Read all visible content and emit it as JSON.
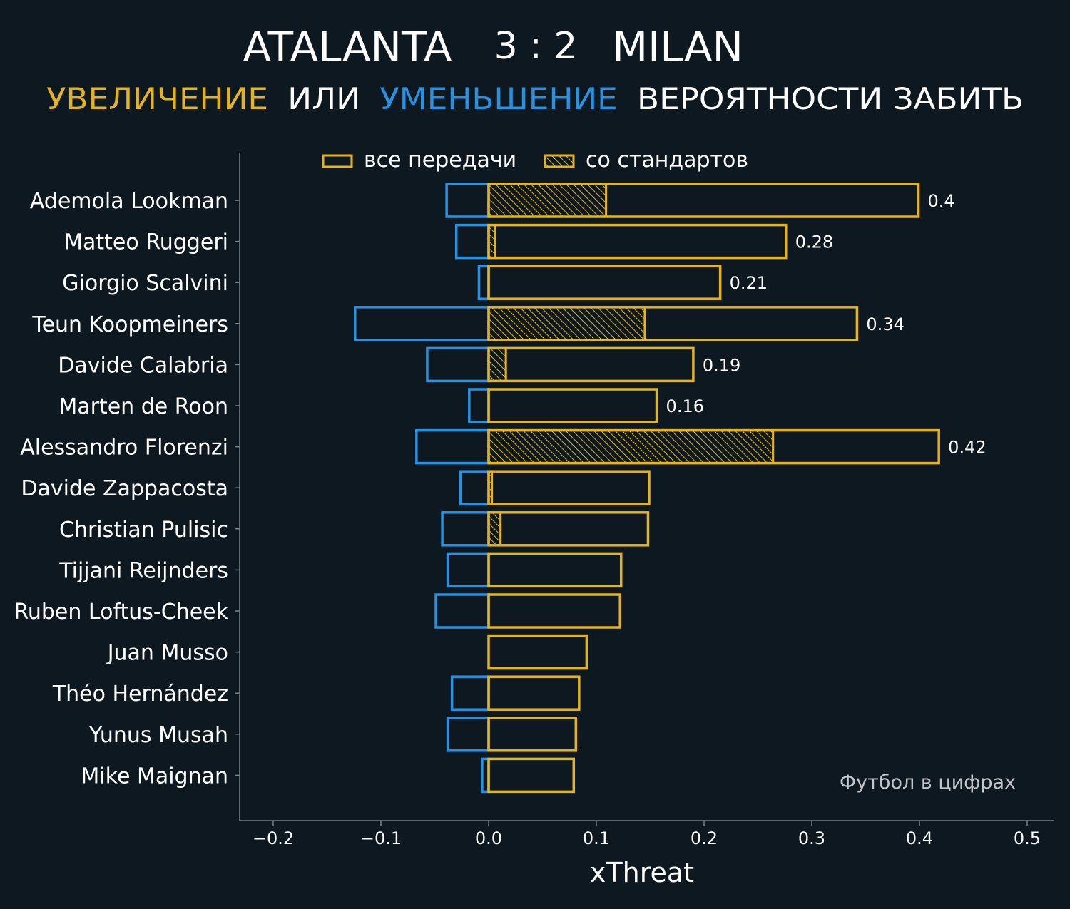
{
  "header": {
    "home_team": "ATALANTA",
    "score": "3 : 2",
    "away_team": "MILAN",
    "subtitle_increase": "УВЕЛИЧЕНИЕ",
    "subtitle_or": "ИЛИ",
    "subtitle_decrease": "УМЕНЬШЕНИЕ",
    "subtitle_rest": "ВЕРОЯТНОСТИ ЗАБИТЬ"
  },
  "watermark": "Футбол в цифрах",
  "colors": {
    "background": "#0e1820",
    "positive": "#e2b422",
    "negative": "#2792e0",
    "text": "#ffffff",
    "axis": "#7a838b",
    "watermark": "#c2c6ca"
  },
  "chart_data": {
    "type": "bar",
    "orientation": "horizontal",
    "xlabel": "xThreat",
    "xlim": [
      -0.23,
      0.53
    ],
    "xticks": [
      -0.2,
      -0.1,
      0.0,
      0.1,
      0.2,
      0.3,
      0.4,
      0.5
    ],
    "xtick_labels": [
      "−0.2",
      "−0.1",
      "0.0",
      "0.1",
      "0.2",
      "0.3",
      "0.4",
      "0.5"
    ],
    "legend_position": "top",
    "legend": [
      {
        "label": "все передачи",
        "style": "outline"
      },
      {
        "label": "со стандартов",
        "style": "hatched"
      }
    ],
    "categories": [
      "Ademola Lookman",
      "Matteo Ruggeri",
      "Giorgio Scalvini",
      "Teun Koopmeiners",
      "Davide Calabria",
      "Marten de Roon",
      "Alessandro Florenzi",
      "Davide Zappacosta",
      "Christian Pulisic",
      "Tijjani Reijnders",
      "Ruben Loftus-Cheek",
      "Juan Musso",
      "Théo Hernández",
      "Yunus Musah",
      "Mike Maignan"
    ],
    "series": [
      {
        "name": "все передачи",
        "part": "positive",
        "values": [
          0.399,
          0.276,
          0.215,
          0.342,
          0.19,
          0.156,
          0.418,
          0.149,
          0.148,
          0.123,
          0.122,
          0.091,
          0.084,
          0.081,
          0.079
        ]
      },
      {
        "name": "со стандартов",
        "part": "positive",
        "values": [
          0.109,
          0.006,
          0.0,
          0.145,
          0.016,
          0.0,
          0.264,
          0.003,
          0.011,
          0.0,
          0.0,
          0.0,
          0.0,
          0.0,
          0.0
        ]
      },
      {
        "name": "все передачи",
        "part": "negative",
        "values": [
          -0.039,
          -0.03,
          -0.009,
          -0.124,
          -0.057,
          -0.018,
          -0.067,
          -0.026,
          -0.043,
          -0.038,
          -0.049,
          0.0,
          -0.034,
          -0.038,
          -0.006
        ]
      }
    ],
    "data_labels": [
      "0.4",
      "0.28",
      "0.21",
      "0.34",
      "0.19",
      "0.16",
      "0.42",
      "",
      "",
      "",
      "",
      "",
      "",
      "",
      ""
    ]
  }
}
